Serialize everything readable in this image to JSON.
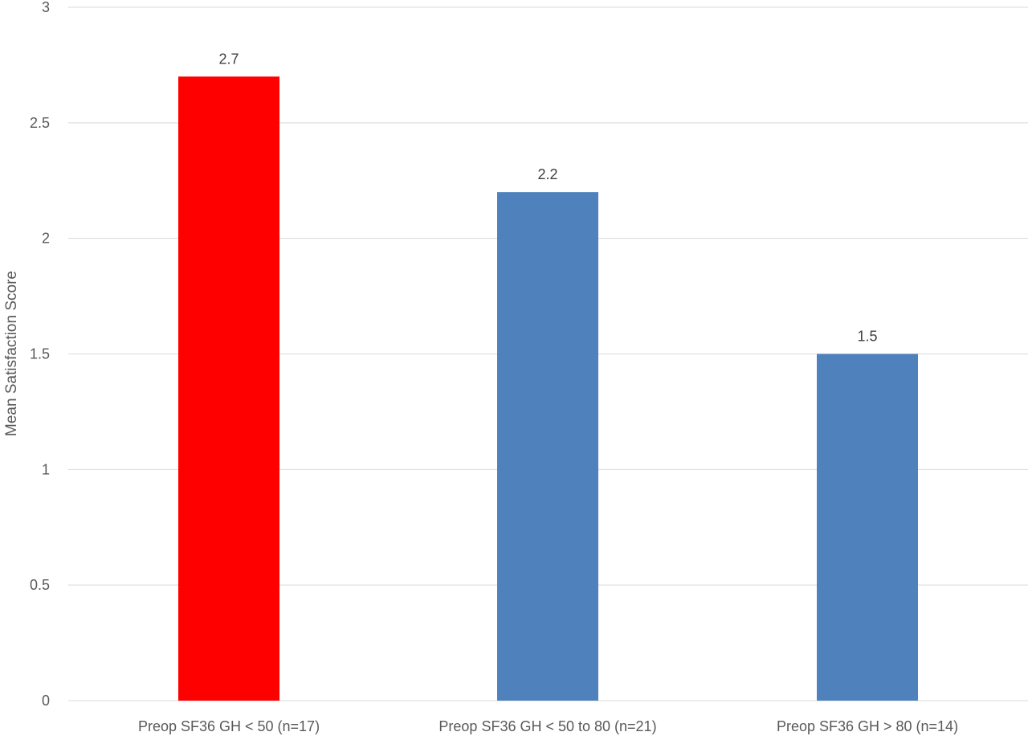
{
  "chart_data": {
    "type": "bar",
    "title": "",
    "xlabel": "",
    "ylabel": "Mean Satisfaction Score",
    "ylim": [
      0,
      3
    ],
    "yticks": [
      0,
      0.5,
      1,
      1.5,
      2,
      2.5,
      3
    ],
    "ytick_labels": [
      "0",
      "0.5",
      "1",
      "1.5",
      "2",
      "2.5",
      "3"
    ],
    "categories": [
      "Preop SF36 GH < 50 (n=17)",
      "Preop SF36 GH < 50 to 80 (n=21)",
      "Preop SF36 GH > 80 (n=14)"
    ],
    "values": [
      2.7,
      2.2,
      1.5
    ],
    "data_labels": [
      "2.7",
      "2.2",
      "1.5"
    ],
    "bar_colors": [
      "#ff0000",
      "#4f81bd",
      "#4f81bd"
    ],
    "grid": true,
    "legend": "none"
  }
}
